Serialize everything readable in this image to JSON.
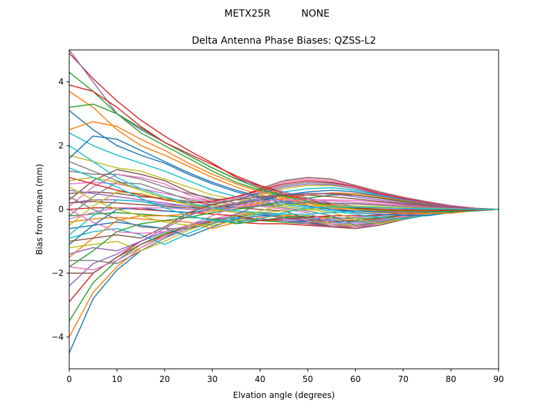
{
  "chart_data": {
    "type": "line",
    "suptitle": "METX25R          NONE",
    "title": "Delta Antenna Phase Biases: QZSS-L2",
    "xlabel": "Elvation angle (degrees)",
    "ylabel": "Bias from mean (mm)",
    "xlim": [
      0,
      90
    ],
    "ylim": [
      -5,
      5
    ],
    "xticks": [
      0,
      10,
      20,
      30,
      40,
      50,
      60,
      70,
      80,
      90
    ],
    "yticks": [
      -4,
      -2,
      0,
      2,
      4
    ],
    "grid": false,
    "legend": "none",
    "x": [
      0,
      5,
      10,
      15,
      20,
      25,
      30,
      35,
      40,
      45,
      50,
      55,
      60,
      65,
      70,
      75,
      80,
      85,
      90
    ],
    "colors": [
      "#1f77b4",
      "#ff7f0e",
      "#2ca02c",
      "#d62728",
      "#9467bd",
      "#8c564b",
      "#e377c2",
      "#7f7f7f",
      "#bcbd22",
      "#17becf"
    ],
    "series": [
      {
        "values": [
          -4.5,
          -2.8,
          -1.9,
          -1.3,
          -0.9,
          -0.5,
          -0.3,
          -0.25,
          -0.3,
          -0.35,
          -0.4,
          -0.5,
          -0.55,
          -0.45,
          -0.3,
          -0.18,
          -0.08,
          -0.03,
          0
        ]
      },
      {
        "values": [
          -4.0,
          -2.6,
          -1.8,
          -1.2,
          -0.8,
          -0.5,
          -0.35,
          -0.3,
          -0.3,
          -0.4,
          -0.45,
          -0.55,
          -0.55,
          -0.45,
          -0.3,
          -0.18,
          -0.08,
          -0.03,
          0
        ]
      },
      {
        "values": [
          -3.5,
          -2.3,
          -1.6,
          -1.1,
          -0.75,
          -0.55,
          -0.4,
          -0.35,
          -0.35,
          -0.4,
          -0.45,
          -0.5,
          -0.5,
          -0.4,
          -0.28,
          -0.16,
          -0.07,
          -0.02,
          0
        ]
      },
      {
        "values": [
          -2.9,
          -2.0,
          -1.5,
          -1.0,
          -0.7,
          -0.5,
          -0.4,
          -0.4,
          -0.45,
          -0.45,
          -0.5,
          -0.55,
          -0.55,
          -0.42,
          -0.28,
          -0.16,
          -0.07,
          -0.02,
          0
        ]
      },
      {
        "values": [
          -2.4,
          -1.7,
          -1.4,
          -1.0,
          -0.7,
          -0.5,
          -0.35,
          -0.3,
          -0.3,
          -0.35,
          -0.45,
          -0.55,
          -0.6,
          -0.45,
          -0.3,
          -0.17,
          -0.08,
          -0.03,
          0
        ]
      },
      {
        "values": [
          -2.0,
          -2.0,
          -1.5,
          -1.1,
          -0.8,
          -0.55,
          -0.35,
          -0.2,
          -0.15,
          -0.25,
          -0.4,
          -0.55,
          -0.6,
          -0.5,
          -0.32,
          -0.18,
          -0.08,
          -0.03,
          0
        ]
      },
      {
        "values": [
          -1.8,
          -1.9,
          -1.6,
          -1.2,
          -0.85,
          -0.55,
          -0.3,
          -0.15,
          -0.1,
          -0.2,
          -0.35,
          -0.5,
          -0.55,
          -0.45,
          -0.3,
          -0.17,
          -0.08,
          -0.03,
          0
        ]
      },
      {
        "values": [
          -1.6,
          -1.6,
          -1.7,
          -1.3,
          -0.9,
          -0.6,
          -0.35,
          -0.2,
          -0.15,
          -0.25,
          -0.35,
          -0.45,
          -0.5,
          -0.42,
          -0.28,
          -0.16,
          -0.07,
          -0.02,
          0
        ]
      },
      {
        "values": [
          -1.2,
          -1.1,
          -1.0,
          -1.3,
          -1.0,
          -0.65,
          -0.4,
          -0.2,
          -0.1,
          -0.15,
          -0.3,
          -0.45,
          -0.5,
          -0.4,
          -0.28,
          -0.16,
          -0.07,
          -0.02,
          0
        ]
      },
      {
        "values": [
          -0.9,
          -0.7,
          -0.6,
          -0.8,
          -1.1,
          -0.75,
          -0.45,
          -0.25,
          -0.15,
          -0.2,
          -0.3,
          -0.4,
          -0.45,
          -0.38,
          -0.26,
          -0.15,
          -0.07,
          -0.02,
          0
        ]
      },
      {
        "values": [
          -0.6,
          -0.5,
          -0.4,
          -0.5,
          -0.6,
          -0.85,
          -0.55,
          -0.3,
          -0.2,
          -0.2,
          -0.25,
          -0.35,
          -0.4,
          -0.33,
          -0.22,
          -0.13,
          -0.06,
          -0.02,
          0
        ]
      },
      {
        "values": [
          -0.4,
          -0.3,
          -0.25,
          -0.3,
          -0.35,
          -0.4,
          -0.6,
          -0.4,
          -0.25,
          -0.2,
          -0.2,
          -0.3,
          -0.35,
          -0.3,
          -0.2,
          -0.12,
          -0.05,
          -0.02,
          0
        ]
      },
      {
        "values": [
          -0.2,
          -0.15,
          -0.1,
          -0.15,
          -0.2,
          -0.25,
          -0.3,
          -0.45,
          -0.35,
          -0.25,
          -0.2,
          -0.25,
          -0.3,
          -0.25,
          -0.18,
          -0.1,
          -0.05,
          -0.02,
          0
        ]
      },
      {
        "values": [
          0.0,
          0.05,
          0.05,
          0.0,
          -0.05,
          -0.1,
          -0.15,
          -0.2,
          -0.35,
          -0.3,
          -0.25,
          -0.2,
          -0.2,
          -0.18,
          -0.12,
          -0.07,
          -0.03,
          -0.01,
          0
        ]
      },
      {
        "values": [
          0.2,
          0.3,
          0.3,
          0.25,
          0.15,
          0.1,
          0.0,
          -0.05,
          -0.1,
          -0.3,
          -0.35,
          -0.3,
          -0.25,
          -0.2,
          -0.14,
          -0.08,
          -0.04,
          -0.01,
          0
        ]
      },
      {
        "values": [
          0.5,
          0.55,
          0.5,
          0.4,
          0.35,
          0.25,
          0.15,
          0.05,
          0.0,
          -0.05,
          -0.3,
          -0.4,
          -0.35,
          -0.28,
          -0.18,
          -0.1,
          -0.05,
          -0.02,
          0
        ]
      },
      {
        "values": [
          0.8,
          0.85,
          0.8,
          0.65,
          0.5,
          0.35,
          0.25,
          0.15,
          0.1,
          0.0,
          -0.1,
          -0.45,
          -0.45,
          -0.35,
          -0.22,
          -0.12,
          -0.05,
          -0.02,
          0
        ]
      },
      {
        "values": [
          1.2,
          1.1,
          1.1,
          0.95,
          0.7,
          0.5,
          0.35,
          0.2,
          0.15,
          0.05,
          -0.05,
          -0.2,
          -0.5,
          -0.4,
          -0.26,
          -0.14,
          -0.06,
          -0.02,
          0
        ]
      },
      {
        "values": [
          1.7,
          1.5,
          1.3,
          1.2,
          0.95,
          0.7,
          0.45,
          0.3,
          0.2,
          0.1,
          0.0,
          -0.1,
          -0.3,
          -0.45,
          -0.3,
          -0.16,
          -0.07,
          -0.02,
          0
        ]
      },
      {
        "values": [
          2.4,
          2.0,
          1.7,
          1.45,
          1.2,
          0.9,
          0.6,
          0.4,
          0.25,
          0.15,
          0.05,
          -0.05,
          -0.15,
          -0.25,
          -0.3,
          -0.18,
          -0.08,
          -0.03,
          0
        ]
      },
      {
        "values": [
          3.1,
          2.5,
          2.0,
          1.7,
          1.45,
          1.1,
          0.8,
          0.55,
          0.35,
          0.2,
          0.1,
          0.0,
          -0.1,
          -0.15,
          -0.18,
          -0.2,
          -0.1,
          -0.03,
          0
        ]
      },
      {
        "values": [
          3.7,
          3.2,
          2.5,
          2.0,
          1.7,
          1.35,
          1.0,
          0.7,
          0.45,
          0.3,
          0.15,
          0.05,
          -0.05,
          -0.1,
          -0.12,
          -0.12,
          -0.12,
          -0.04,
          0
        ]
      },
      {
        "values": [
          4.3,
          3.7,
          3.0,
          2.4,
          2.0,
          1.6,
          1.2,
          0.85,
          0.6,
          0.4,
          0.25,
          0.1,
          0.0,
          -0.05,
          -0.08,
          -0.08,
          -0.07,
          -0.05,
          0
        ]
      },
      {
        "values": [
          4.9,
          4.1,
          3.4,
          2.8,
          2.3,
          1.85,
          1.45,
          1.0,
          0.7,
          0.45,
          0.3,
          0.15,
          0.05,
          0.0,
          -0.03,
          -0.04,
          -0.04,
          -0.03,
          0
        ]
      },
      {
        "values": [
          5.0,
          4.0,
          3.0,
          2.5,
          2.1,
          1.7,
          1.3,
          0.95,
          0.75,
          0.55,
          0.35,
          0.2,
          0.1,
          0.05,
          0.02,
          0.0,
          -0.01,
          -0.01,
          0
        ]
      },
      {
        "values": [
          0.3,
          0.9,
          1.25,
          1.1,
          0.9,
          0.55,
          0.3,
          0.35,
          0.65,
          0.9,
          1.0,
          0.95,
          0.75,
          0.55,
          0.38,
          0.24,
          0.12,
          0.04,
          0
        ]
      },
      {
        "values": [
          0.1,
          0.7,
          1.1,
          1.0,
          0.8,
          0.45,
          0.25,
          0.35,
          0.6,
          0.85,
          0.95,
          0.9,
          0.72,
          0.52,
          0.36,
          0.22,
          0.11,
          0.04,
          0
        ]
      },
      {
        "values": [
          -0.2,
          0.4,
          0.85,
          0.8,
          0.55,
          0.3,
          0.2,
          0.3,
          0.55,
          0.75,
          0.85,
          0.82,
          0.7,
          0.5,
          0.34,
          0.2,
          0.1,
          0.03,
          0
        ]
      },
      {
        "values": [
          -0.5,
          0.1,
          0.55,
          0.5,
          0.3,
          0.15,
          0.1,
          0.2,
          0.45,
          0.65,
          0.75,
          0.75,
          0.65,
          0.48,
          0.32,
          0.19,
          0.09,
          0.03,
          0
        ]
      },
      {
        "values": [
          -0.8,
          -0.2,
          0.3,
          0.25,
          0.1,
          0.0,
          0.05,
          0.15,
          0.35,
          0.55,
          0.65,
          0.68,
          0.6,
          0.45,
          0.3,
          0.18,
          0.09,
          0.03,
          0
        ]
      },
      {
        "values": [
          -1.1,
          -0.5,
          0.0,
          0.05,
          -0.05,
          -0.1,
          0.0,
          0.1,
          0.25,
          0.45,
          0.55,
          0.6,
          0.55,
          0.42,
          0.28,
          0.17,
          0.08,
          0.03,
          0
        ]
      },
      {
        "values": [
          -1.5,
          -0.9,
          -0.35,
          -0.2,
          -0.2,
          -0.15,
          -0.05,
          0.05,
          0.2,
          0.35,
          0.45,
          0.52,
          0.5,
          0.4,
          0.27,
          0.16,
          0.08,
          0.03,
          0
        ]
      },
      {
        "values": [
          -1.8,
          -1.3,
          -0.7,
          -0.45,
          -0.35,
          -0.25,
          -0.1,
          0.0,
          0.1,
          0.25,
          0.35,
          0.45,
          0.45,
          0.36,
          0.25,
          0.15,
          0.07,
          0.02,
          0
        ]
      },
      {
        "values": [
          1.0,
          0.8,
          0.6,
          0.45,
          0.3,
          0.2,
          0.25,
          0.4,
          0.6,
          0.8,
          0.9,
          0.85,
          0.7,
          0.5,
          0.35,
          0.21,
          0.1,
          0.03,
          0
        ]
      },
      {
        "values": [
          0.6,
          0.5,
          0.4,
          0.3,
          0.2,
          0.1,
          0.15,
          0.3,
          0.5,
          0.7,
          0.8,
          0.78,
          0.65,
          0.47,
          0.32,
          0.19,
          0.09,
          0.03,
          0
        ]
      },
      {
        "values": [
          0.2,
          0.25,
          0.2,
          0.15,
          0.1,
          0.05,
          0.05,
          0.15,
          0.3,
          0.45,
          0.5,
          0.5,
          0.45,
          0.35,
          0.24,
          0.14,
          0.07,
          0.02,
          0
        ]
      },
      {
        "values": [
          -0.3,
          -0.1,
          0.05,
          0.05,
          0.05,
          0.0,
          0.0,
          0.05,
          0.15,
          0.25,
          0.3,
          0.3,
          0.28,
          0.22,
          0.15,
          0.09,
          0.04,
          0.01,
          0
        ]
      },
      {
        "values": [
          1.5,
          1.2,
          0.9,
          0.6,
          0.35,
          0.15,
          0.05,
          0.05,
          0.1,
          0.15,
          0.2,
          0.2,
          0.18,
          0.14,
          0.1,
          0.06,
          0.03,
          0.01,
          0
        ]
      },
      {
        "values": [
          0.9,
          1.0,
          0.85,
          0.6,
          0.35,
          0.15,
          0.0,
          -0.1,
          -0.1,
          -0.05,
          0.0,
          0.05,
          0.05,
          0.04,
          0.03,
          0.02,
          0.01,
          0.0,
          0
        ]
      },
      {
        "values": [
          2.0,
          1.5,
          1.0,
          0.65,
          0.4,
          0.2,
          0.05,
          -0.05,
          -0.1,
          -0.15,
          -0.15,
          -0.1,
          -0.05,
          -0.03,
          -0.02,
          -0.01,
          0.0,
          0.0,
          0
        ]
      },
      {
        "values": [
          1.6,
          2.3,
          2.2,
          1.85,
          1.5,
          1.15,
          0.85,
          0.6,
          0.4,
          0.25,
          0.1,
          0.0,
          -0.05,
          -0.08,
          -0.08,
          -0.06,
          -0.04,
          -0.02,
          0
        ]
      },
      {
        "values": [
          2.5,
          2.75,
          2.6,
          2.2,
          1.85,
          1.45,
          1.1,
          0.8,
          0.55,
          0.35,
          0.2,
          0.08,
          0.0,
          -0.04,
          -0.06,
          -0.05,
          -0.03,
          -0.01,
          0
        ]
      },
      {
        "values": [
          3.2,
          3.3,
          3.0,
          2.55,
          2.1,
          1.7,
          1.3,
          0.95,
          0.65,
          0.42,
          0.25,
          0.12,
          0.03,
          -0.02,
          -0.04,
          -0.04,
          -0.03,
          -0.01,
          0
        ]
      },
      {
        "values": [
          3.9,
          3.7,
          3.2,
          2.6,
          2.1,
          1.75,
          1.4,
          1.05,
          0.75,
          0.5,
          0.3,
          0.15,
          0.05,
          0.0,
          -0.02,
          -0.03,
          -0.02,
          -0.01,
          0
        ]
      },
      {
        "values": [
          -1.4,
          -1.2,
          -1.3,
          -1.0,
          -0.6,
          -0.2,
          0.05,
          0.2,
          0.35,
          0.45,
          0.5,
          0.48,
          0.4,
          0.3,
          0.2,
          0.12,
          0.06,
          0.02,
          0
        ]
      },
      {
        "values": [
          -1.0,
          -0.9,
          -0.8,
          -0.9,
          -0.55,
          -0.1,
          0.15,
          0.3,
          0.4,
          0.45,
          0.45,
          0.4,
          0.33,
          0.25,
          0.17,
          0.1,
          0.05,
          0.02,
          0
        ]
      },
      {
        "values": [
          0.0,
          -0.4,
          -0.7,
          -0.75,
          -0.7,
          -0.5,
          -0.2,
          0.1,
          0.25,
          0.3,
          0.3,
          0.27,
          0.22,
          0.17,
          0.12,
          0.07,
          0.03,
          0.01,
          0
        ]
      },
      {
        "values": [
          0.4,
          0.0,
          -0.3,
          -0.55,
          -0.6,
          -0.6,
          -0.45,
          -0.15,
          0.15,
          0.25,
          0.22,
          0.2,
          0.17,
          0.13,
          0.09,
          0.05,
          0.02,
          0.01,
          0
        ]
      },
      {
        "values": [
          0.7,
          0.3,
          0.0,
          -0.2,
          -0.4,
          -0.5,
          -0.5,
          -0.35,
          -0.05,
          0.15,
          0.15,
          0.12,
          0.1,
          0.08,
          0.05,
          0.03,
          0.02,
          0.0,
          0
        ]
      },
      {
        "values": [
          1.3,
          1.0,
          0.7,
          0.35,
          0.05,
          -0.2,
          -0.35,
          -0.4,
          -0.3,
          -0.1,
          0.05,
          0.08,
          0.07,
          0.05,
          0.03,
          0.02,
          0.01,
          0.0,
          0
        ]
      }
    ]
  }
}
